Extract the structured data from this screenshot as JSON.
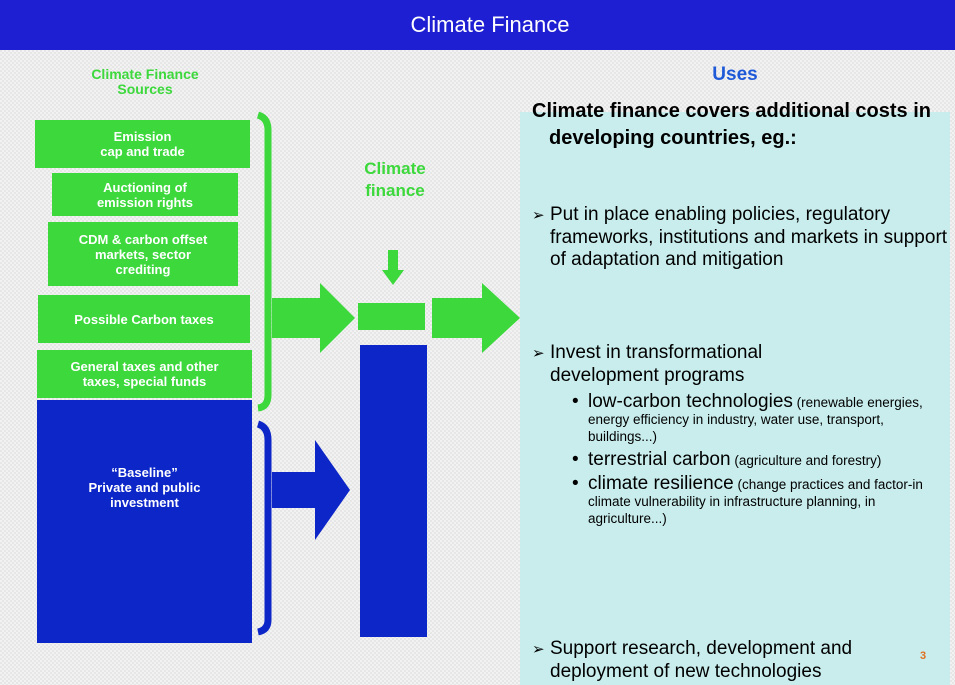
{
  "header": {
    "title": "Climate Finance"
  },
  "sources": {
    "title": "Climate Finance\nSources",
    "items": [
      "Emission\ncap and trade",
      "Auctioning of\nemission rights",
      "CDM & carbon offset\nmarkets, sector\ncrediting",
      "Possible Carbon taxes",
      "General taxes and other\ntaxes, special funds"
    ],
    "baseline": "“Baseline”\nPrivate and public\ninvestment"
  },
  "flow": {
    "label": "Climate\nfinance"
  },
  "uses": {
    "title": "Uses",
    "intro": "Climate finance covers additional costs in developing countries, eg.:",
    "points": [
      {
        "text": "Put in place enabling policies, regulatory frameworks, institutions and markets in support of adaptation and mitigation"
      },
      {
        "text": "Invest in  transformational development programs",
        "items": [
          {
            "name": "low-carbon technologies",
            "detail": "(renewable energies, energy efficiency in industry, water use, transport, buildings...)"
          },
          {
            "name": "terrestrial carbon",
            "detail": "(agriculture and forestry)"
          },
          {
            "name": "climate resilience",
            "detail": "(change practices and factor-in climate vulnerability in infrastructure planning, in agriculture...)"
          }
        ]
      },
      {
        "text": "Support research, development and deployment of new technologies"
      }
    ]
  },
  "page_number": "3"
}
